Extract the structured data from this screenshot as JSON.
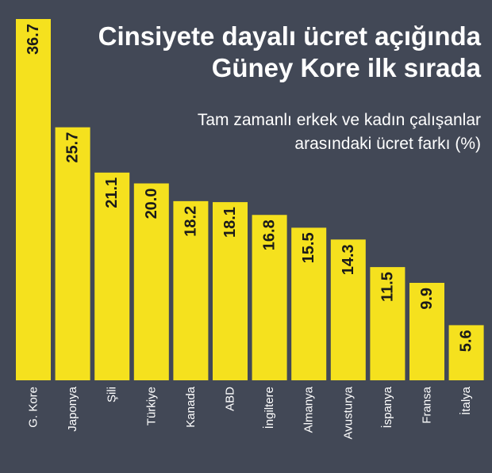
{
  "title_line1": "Cinsiyete dayalı ücret açığında",
  "title_line2": "Güney Kore ilk sırada",
  "subtitle_line1": "Tam zamanlı erkek ve kadın çalışanlar",
  "subtitle_line2": "arasındaki ücret farkı (%)",
  "colors": {
    "background": "#424856",
    "bar": "#f5e11e",
    "value_text": "#1a1a1a",
    "label_text": "#ffffff"
  },
  "chart_data": {
    "type": "bar",
    "categories": [
      "G. Kore",
      "Japonya",
      "Şili",
      "Türkiye",
      "Kanada",
      "ABD",
      "İngiltere",
      "Almanya",
      "Avusturya",
      "İspanya",
      "Fransa",
      "İtalya"
    ],
    "values": [
      36.7,
      25.7,
      21.1,
      20.0,
      18.2,
      18.1,
      16.8,
      15.5,
      14.3,
      11.5,
      9.9,
      5.6
    ],
    "value_labels": [
      "36.7",
      "25.7",
      "21.1",
      "20.0",
      "18.2",
      "18.1",
      "16.8",
      "15.5",
      "14.3",
      "11.5",
      "9.9",
      "5.6"
    ],
    "title": "Cinsiyete dayalı ücret açığında Güney Kore ilk sırada",
    "subtitle": "Tam zamanlı erkek ve kadın çalışanlar arasındaki ücret farkı (%)",
    "xlabel": "",
    "ylabel": "",
    "ylim": [
      0,
      36.7
    ],
    "grid": false,
    "legend": "none",
    "value_labels_rotated": true,
    "category_labels_rotated": true
  }
}
